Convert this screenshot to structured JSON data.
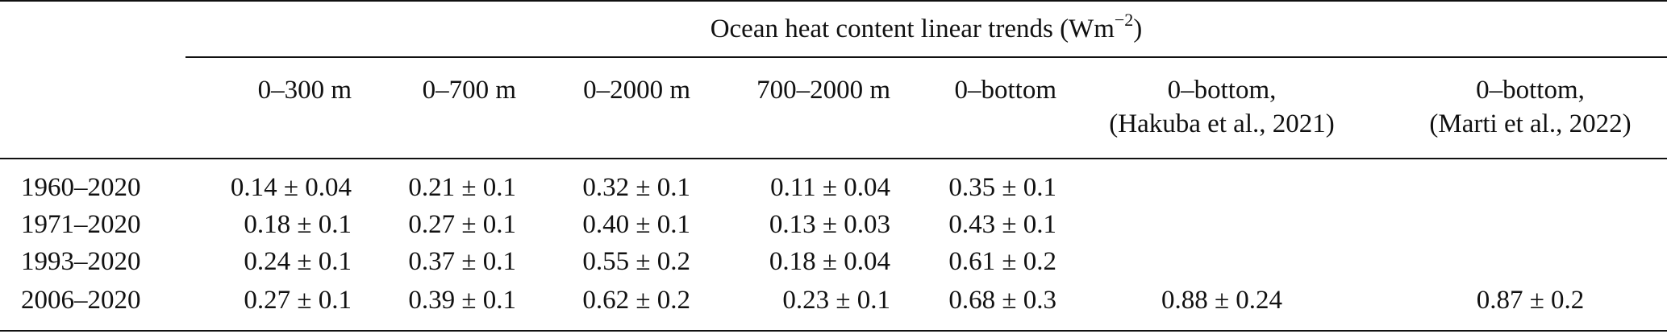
{
  "table": {
    "spanner": {
      "text": "Ocean heat content linear trends (Wm",
      "sup": "−2",
      "close": ")"
    },
    "columns": [
      {
        "line1": "0–300 m",
        "line2": ""
      },
      {
        "line1": "0–700 m",
        "line2": ""
      },
      {
        "line1": "0–2000 m",
        "line2": ""
      },
      {
        "line1": "700–2000 m",
        "line2": ""
      },
      {
        "line1": "0–bottom",
        "line2": ""
      },
      {
        "line1": "0–bottom,",
        "line2": "(Hakuba et al., 2021)"
      },
      {
        "line1": "0–bottom,",
        "line2": "(Marti et al., 2022)"
      }
    ],
    "rows": [
      {
        "period": "1960–2020",
        "cells": [
          "0.14 ± 0.04",
          "0.21 ± 0.1",
          "0.32 ± 0.1",
          "0.11 ± 0.04",
          "0.35 ± 0.1",
          "",
          ""
        ]
      },
      {
        "period": "1971–2020",
        "cells": [
          "0.18 ± 0.1",
          "0.27 ± 0.1",
          "0.40 ± 0.1",
          "0.13 ± 0.03",
          "0.43 ± 0.1",
          "",
          ""
        ]
      },
      {
        "period": "1993–2020",
        "cells": [
          "0.24 ± 0.1",
          "0.37 ± 0.1",
          "0.55 ± 0.2",
          "0.18 ± 0.04",
          "0.61 ± 0.2",
          "",
          ""
        ]
      },
      {
        "period": "2006–2020",
        "cells": [
          "0.27 ± 0.1",
          "0.39 ± 0.1",
          "0.62 ± 0.2",
          "0.23 ± 0.1",
          "0.68 ± 0.3",
          "0.88 ± 0.24",
          "0.87 ± 0.2"
        ]
      }
    ]
  }
}
